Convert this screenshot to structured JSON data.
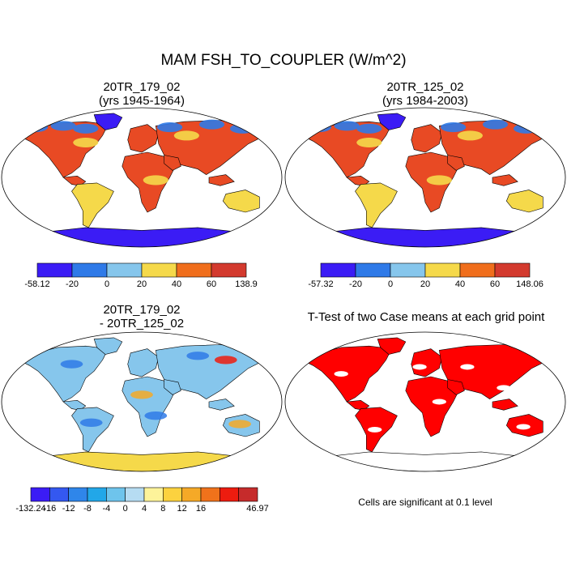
{
  "title": "MAM FSH_TO_COUPLER (W/m^2)",
  "panels": [
    {
      "id": "case1",
      "title_line1": "20TR_179_02",
      "title_line2": "(yrs 1945-1964)"
    },
    {
      "id": "case2",
      "title_line1": "20TR_125_02",
      "title_line2": "(yrs 1984-2003)"
    },
    {
      "id": "diff",
      "title_line1": "20TR_179_02",
      "title_line2": "- 20TR_125_02"
    },
    {
      "id": "ttest",
      "title_line1": "T-Test of two Case means at each grid point",
      "title_line2": ""
    }
  ],
  "colorbars": [
    {
      "colors": [
        "#3b1cf5",
        "#2f7ae8",
        "#86c6ec",
        "#f5d94a",
        "#f06e1c",
        "#d33a2e"
      ],
      "labels": [
        "-58.12",
        "-20",
        "0",
        "20",
        "40",
        "60",
        "138.9"
      ]
    },
    {
      "colors": [
        "#3b1cf5",
        "#2f7ae8",
        "#86c6ec",
        "#f5d94a",
        "#f06e1c",
        "#d33a2e"
      ],
      "labels": [
        "-57.32",
        "-20",
        "0",
        "20",
        "40",
        "60",
        "148.06"
      ]
    },
    {
      "colors": [
        "#3b1cf5",
        "#3458f0",
        "#2f86ea",
        "#22a7e8",
        "#6ec4ec",
        "#b6dcf2",
        "#fdf39a",
        "#fcd23f",
        "#f5a927",
        "#f0721b",
        "#ed1c0f",
        "#c62b2b"
      ],
      "labels": [
        "-132.24",
        "-16",
        "-12",
        "-8",
        "-4",
        "0",
        "4",
        "8",
        "12",
        "16",
        "46.97"
      ]
    }
  ],
  "footnote": "Cells are significant at 0.1 level",
  "map_colors": {
    "case_land": "#e84a24",
    "case_warm": "#f5d94a",
    "case_cool": "#2f7ae8",
    "case_ice": "#3b1cf5",
    "diff_land": "#86c6ec",
    "diff_neg": "#2f7ae8",
    "diff_pos": "#f5a927",
    "sig": "#ff0000"
  }
}
